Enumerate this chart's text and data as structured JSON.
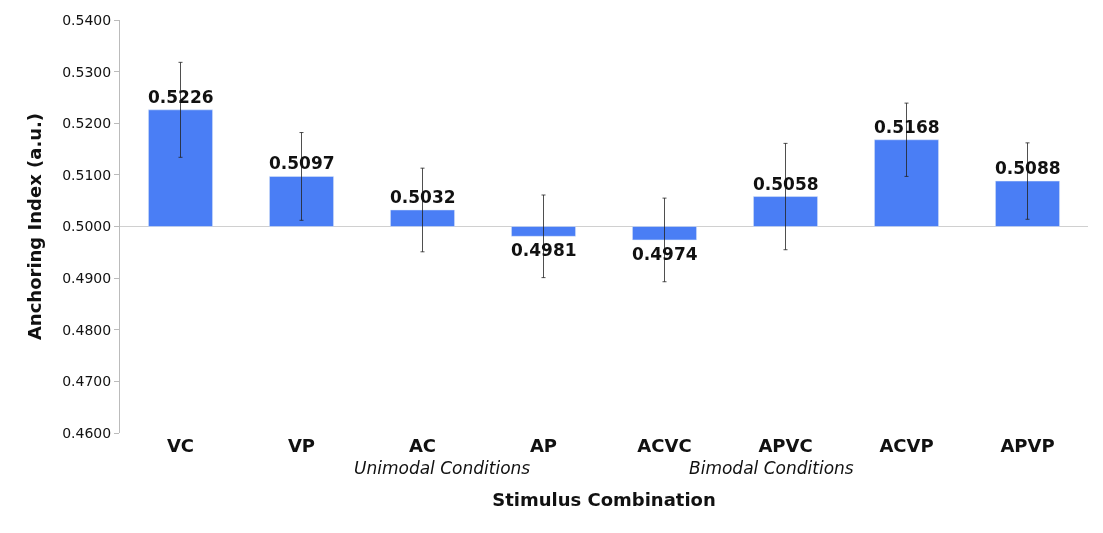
{
  "chart_data": {
    "type": "bar",
    "xlabel": "Stimulus Combination",
    "ylabel": "Anchoring Index (a.u.)",
    "categories": [
      "VC",
      "VP",
      "AC",
      "AP",
      "ACVC",
      "APVC",
      "ACVP",
      "APVP"
    ],
    "base": [
      0.5,
      0.5,
      0.5,
      0.5,
      0.5,
      0.5,
      0.5,
      0.5
    ],
    "values": [
      0.0226,
      0.0097,
      0.0032,
      -0.0019,
      -0.0026,
      0.0058,
      0.0168,
      0.0088
    ],
    "value_labels": [
      "0.5226",
      "0.5097",
      "0.5032",
      "0.4981",
      "0.4974",
      "0.5058",
      "0.5168",
      "0.5088"
    ],
    "color": "#4a7ef5",
    "errors": [
      0.0092,
      0.0085,
      0.0081,
      0.008,
      0.0081,
      0.0103,
      0.0071,
      0.0074
    ],
    "ylim": [
      0.46,
      0.54
    ],
    "yticks": [
      {
        "value": 0.46,
        "label": "0.4600"
      },
      {
        "value": 0.47,
        "label": "0.4700"
      },
      {
        "value": 0.48,
        "label": "0.4800"
      },
      {
        "value": 0.49,
        "label": "0.4900"
      },
      {
        "value": 0.5,
        "label": "0.5000"
      },
      {
        "value": 0.51,
        "label": "0.5100"
      },
      {
        "value": 0.52,
        "label": "0.5200"
      },
      {
        "value": 0.53,
        "label": "0.5300"
      },
      {
        "value": 0.54,
        "label": "0.5400"
      }
    ],
    "ref_lines": [
      {
        "axis": "y",
        "value": 0.5,
        "color": "#d0d0d0"
      }
    ],
    "annotations": [
      "Unimodal Conditions",
      "Bimodal Conditions"
    ],
    "grid": false,
    "legend": false
  }
}
